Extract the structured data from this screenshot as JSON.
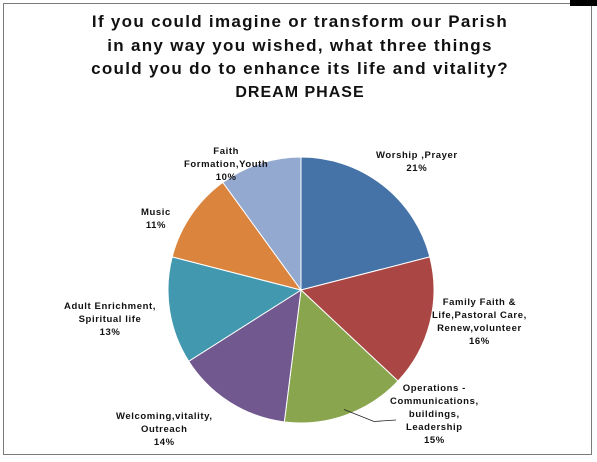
{
  "chart_data": {
    "type": "pie",
    "title_lines": [
      "If you could imagine or transform our Parish",
      "in any way you wished, what three things",
      "could you do to enhance its life and vitality?"
    ],
    "subtitle": "DREAM PHASE",
    "slices": [
      {
        "label_lines": [
          "Worship ,Prayer"
        ],
        "percent_label": "21%",
        "value": 21,
        "color": "#4572a7"
      },
      {
        "label_lines": [
          "Family Faith &",
          "Life,Pastoral Care,",
          "Renew,volunteer"
        ],
        "percent_label": "16%",
        "value": 16,
        "color": "#aa4643"
      },
      {
        "label_lines": [
          "Operations -",
          "Communications,",
          "buildings,",
          "Leadership"
        ],
        "percent_label": "15%",
        "value": 15,
        "color": "#89a54e"
      },
      {
        "label_lines": [
          "Welcoming,vitality,",
          "Outreach"
        ],
        "percent_label": "14%",
        "value": 14,
        "color": "#71588f"
      },
      {
        "label_lines": [
          "Adult Enrichment,",
          "Spiritual life"
        ],
        "percent_label": "13%",
        "value": 13,
        "color": "#4198af"
      },
      {
        "label_lines": [
          "Music"
        ],
        "percent_label": "11%",
        "value": 11,
        "color": "#db843d"
      },
      {
        "label_lines": [
          "Faith",
          "Formation,Youth"
        ],
        "percent_label": "10%",
        "value": 10,
        "color": "#93a9cf"
      }
    ],
    "start_angle": "12 o'clock",
    "direction": "clockwise"
  }
}
